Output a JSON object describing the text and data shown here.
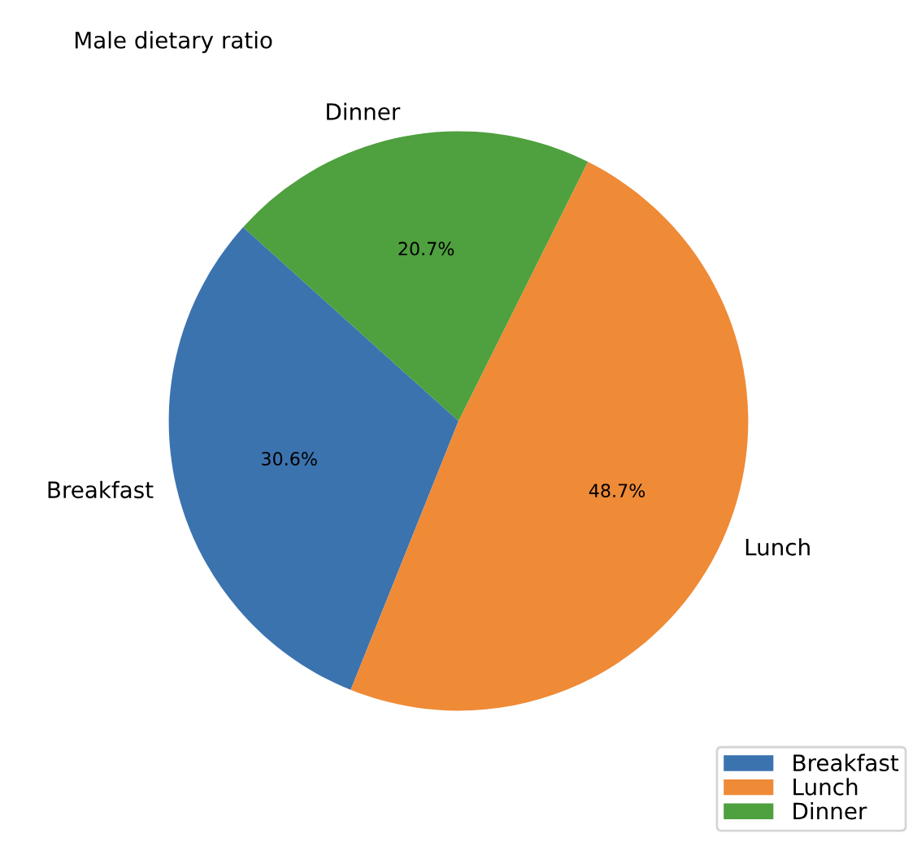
{
  "chart_data": {
    "type": "pie",
    "title": "Male dietary ratio",
    "categories": [
      "Breakfast",
      "Lunch",
      "Dinner"
    ],
    "values": [
      30.6,
      48.7,
      20.7
    ],
    "colors": [
      "#3b73af",
      "#ef8a36",
      "#4fa03e"
    ],
    "value_labels": [
      "30.6%",
      "48.7%",
      "20.7%"
    ],
    "legend": "bottom right"
  }
}
